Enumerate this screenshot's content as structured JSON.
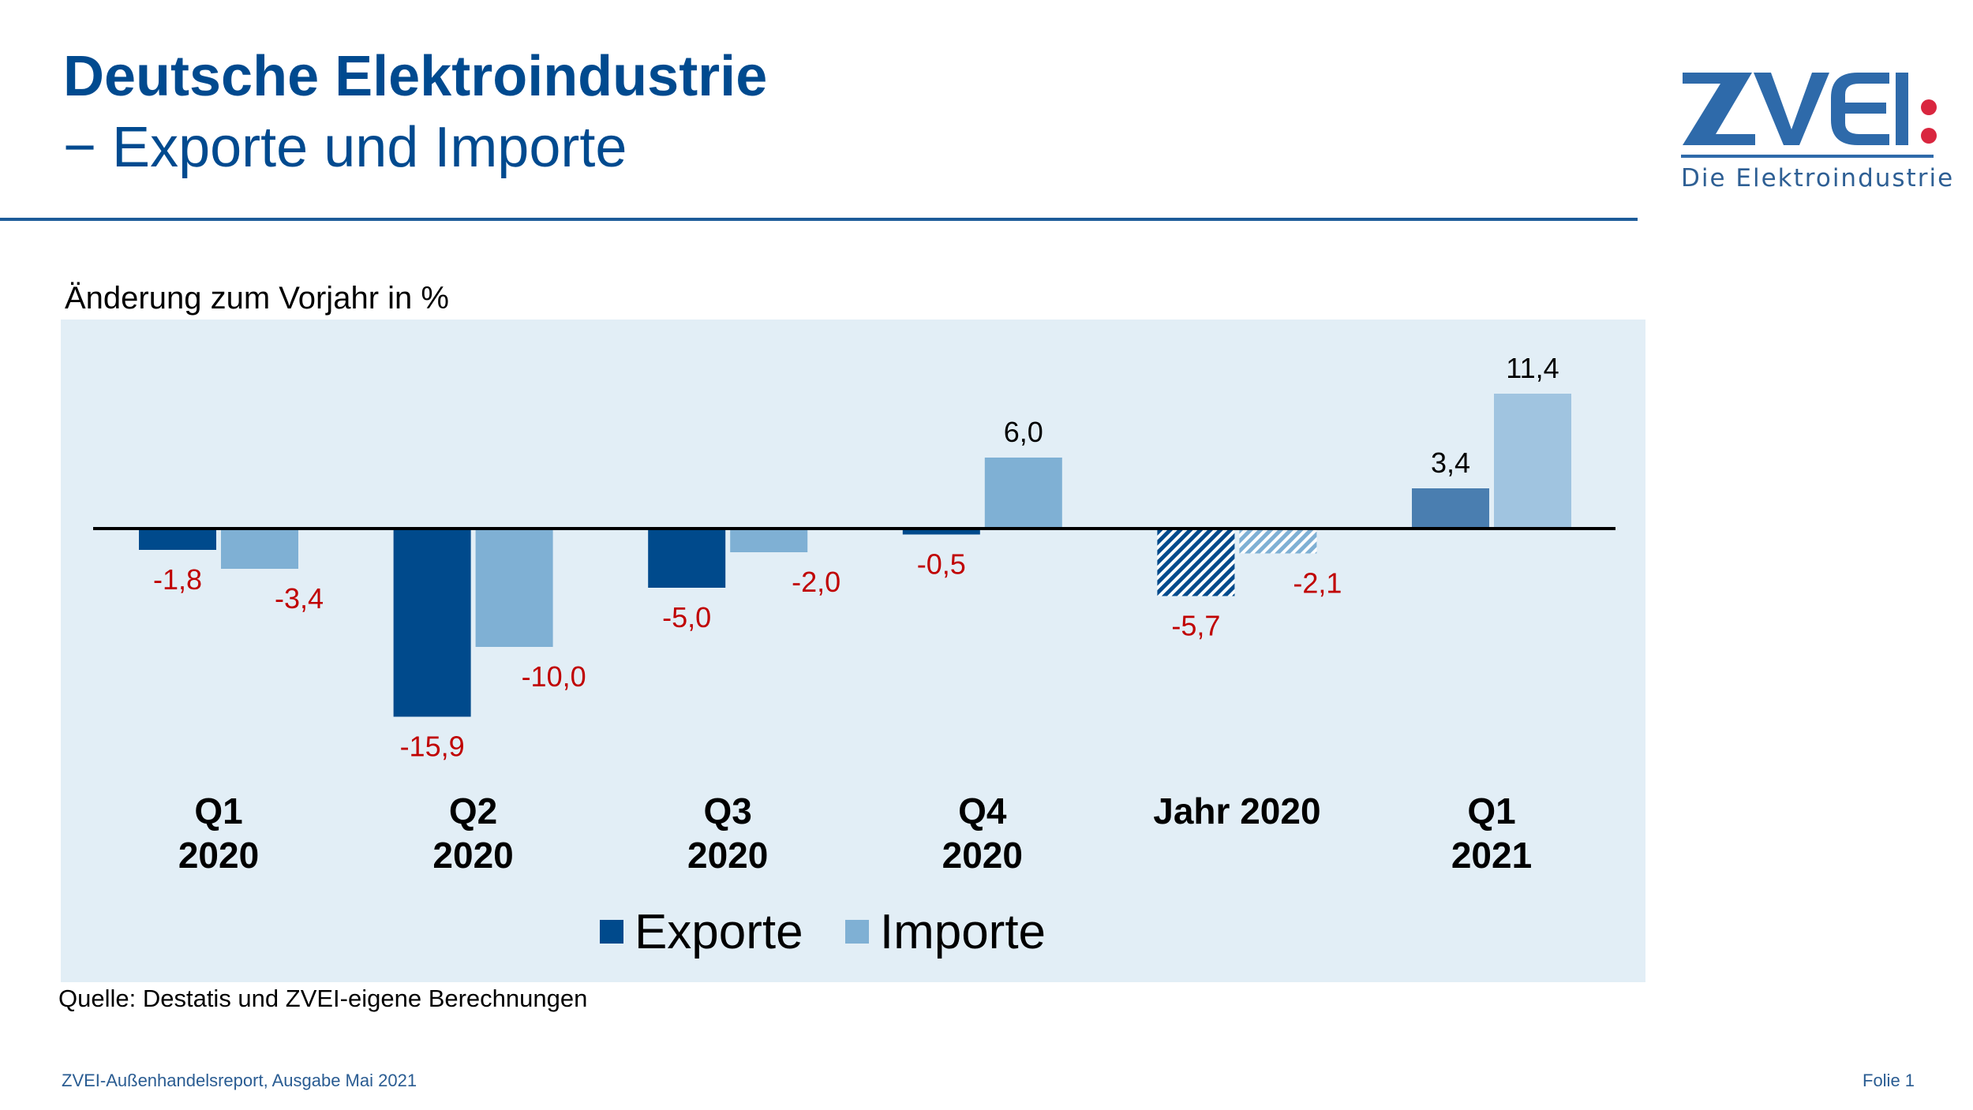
{
  "header": {
    "title": "Deutsche Elektroindustrie",
    "subtitle": "− Exporte und Importe"
  },
  "logo": {
    "wordmark": "ZVEI",
    "tagline": "Die Elektroindustrie",
    "colors": {
      "primary": "#2e6aaa",
      "dots": "#d9263f"
    }
  },
  "chart_caption": "Änderung zum Vorjahr in %",
  "chart_data": {
    "type": "bar",
    "title": "Änderung zum Vorjahr in %",
    "xlabel": "",
    "ylabel": "Änderung zum Vorjahr in %",
    "ylim": [
      -17,
      13
    ],
    "grid": false,
    "legend_position": "bottom-center",
    "categories": [
      {
        "line1": "Q1",
        "line2": "2020"
      },
      {
        "line1": "Q2",
        "line2": "2020"
      },
      {
        "line1": "Q3",
        "line2": "2020"
      },
      {
        "line1": "Q4",
        "line2": "2020"
      },
      {
        "line1": "Jahr 2020",
        "line2": ""
      },
      {
        "line1": "Q1",
        "line2": "2021"
      }
    ],
    "series": [
      {
        "name": "Exporte",
        "color": "#004a8c",
        "values": [
          -1.8,
          -15.9,
          -5.0,
          -0.5,
          -5.7,
          3.4
        ],
        "labels": [
          "-1,8",
          "-15,9",
          "-5,0",
          "-0,5",
          "-5,7",
          "3,4"
        ]
      },
      {
        "name": "Importe",
        "color": "#7fb0d4",
        "values": [
          -3.4,
          -10.0,
          -2.0,
          6.0,
          -2.1,
          11.4
        ],
        "labels": [
          "-3,4",
          "-10,0",
          "-2,0",
          "6,0",
          "-2,1",
          "11,4"
        ]
      }
    ],
    "styles": {
      "hatched_category_index": 4,
      "highlight_category_index": 5,
      "highlight_colors": [
        "#4a7eb0",
        "#a0c4e0"
      ],
      "negative_label_color": "#c00000",
      "positive_label_color": "#000000"
    }
  },
  "legend": [
    {
      "label": "Exporte",
      "color": "#004a8c"
    },
    {
      "label": "Importe",
      "color": "#7fb0d4"
    }
  ],
  "source": "Quelle: Destatis und ZVEI-eigene Berechnungen",
  "footer": {
    "left": "ZVEI-Außenhandelsreport, Ausgabe Mai 2021",
    "right": "Folie 1"
  }
}
